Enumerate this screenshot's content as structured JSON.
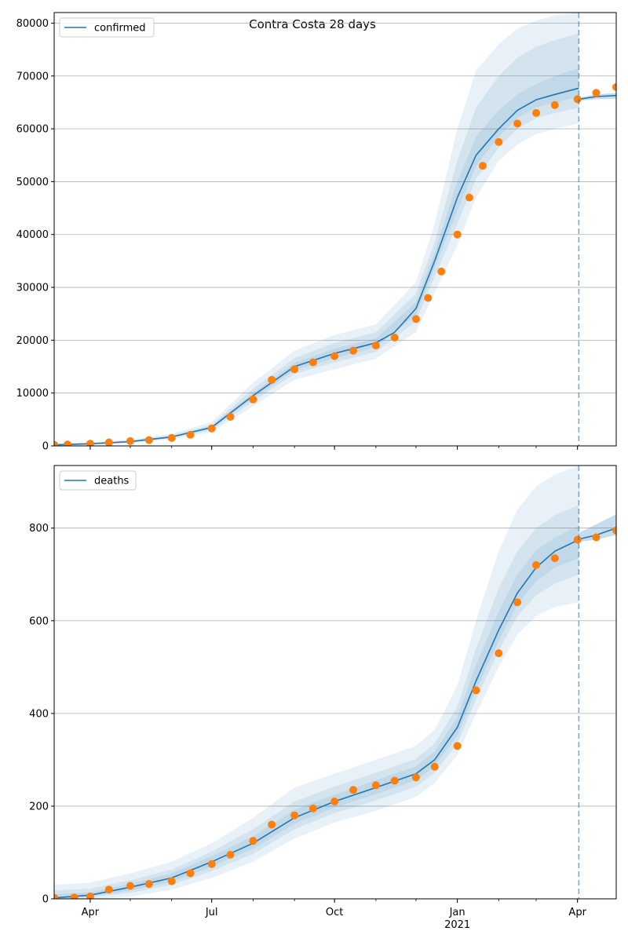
{
  "figure": {
    "title": "Contra Costa 28 days"
  },
  "colors": {
    "line": "#1f77b4",
    "observed": "#ff7f0e",
    "band": "#1f77b4",
    "grid": "#b0b0b0"
  },
  "x_axis": {
    "range": [
      "2020-03-05",
      "2021-04-30"
    ],
    "tick_labels": [
      {
        "date": "2020-04-01",
        "label": "Apr"
      },
      {
        "date": "2020-07-01",
        "label": "Jul"
      },
      {
        "date": "2020-10-01",
        "label": "Oct"
      },
      {
        "date": "2021-01-01",
        "label": "Jan",
        "sublabel": "2021"
      },
      {
        "date": "2021-04-01",
        "label": "Apr"
      }
    ],
    "forecast_start": "2021-04-02"
  },
  "chart_data": [
    {
      "type": "line",
      "legend": {
        "label": "confirmed",
        "position": "top-left"
      },
      "grid": "y",
      "ylim": [
        0,
        82000
      ],
      "yticks": [
        0,
        10000,
        20000,
        30000,
        40000,
        50000,
        60000,
        70000,
        80000
      ],
      "model": {
        "x": [
          "2020-03-05",
          "2020-04-01",
          "2020-05-01",
          "2020-06-01",
          "2020-07-01",
          "2020-08-01",
          "2020-09-01",
          "2020-10-01",
          "2020-11-01",
          "2020-11-15",
          "2020-12-01",
          "2020-12-15",
          "2021-01-01",
          "2021-01-15",
          "2021-02-01",
          "2021-02-15",
          "2021-03-01",
          "2021-03-15",
          "2021-04-02"
        ],
        "y": [
          200,
          400,
          800,
          1700,
          3500,
          9500,
          15000,
          17500,
          19500,
          21500,
          26000,
          35000,
          47000,
          55000,
          60000,
          63500,
          65500,
          66500,
          67700
        ]
      },
      "bands": [
        {
          "x": [
            "2020-03-05",
            "2020-04-01",
            "2020-05-01",
            "2020-06-01",
            "2020-07-01",
            "2020-08-01",
            "2020-09-01",
            "2020-10-01",
            "2020-11-01",
            "2020-12-01",
            "2020-12-15",
            "2021-01-01",
            "2021-01-15",
            "2021-02-01",
            "2021-02-15",
            "2021-03-01",
            "2021-03-15",
            "2021-04-02"
          ],
          "lo": [
            0,
            200,
            500,
            1200,
            2600,
            7500,
            12500,
            14500,
            16500,
            21500,
            29000,
            38000,
            47000,
            54000,
            57000,
            59000,
            60000,
            61000
          ],
          "hi": [
            400,
            700,
            1200,
            2300,
            4500,
            12000,
            18000,
            21000,
            23000,
            31000,
            42000,
            60000,
            71000,
            76000,
            79000,
            80500,
            81500,
            82000
          ]
        },
        {
          "x": [
            "2020-03-05",
            "2020-04-01",
            "2020-05-01",
            "2020-06-01",
            "2020-07-01",
            "2020-08-01",
            "2020-09-01",
            "2020-10-01",
            "2020-11-01",
            "2020-12-01",
            "2020-12-15",
            "2021-01-01",
            "2021-01-15",
            "2021-02-01",
            "2021-02-15",
            "2021-03-01",
            "2021-03-15",
            "2021-04-02"
          ],
          "lo": [
            100,
            300,
            650,
            1450,
            3000,
            8400,
            13600,
            15800,
            17800,
            23500,
            32000,
            42000,
            50500,
            56500,
            60000,
            62000,
            63000,
            64000
          ],
          "hi": [
            300,
            550,
            1000,
            2000,
            4000,
            10800,
            16600,
            19500,
            21500,
            28800,
            38500,
            54000,
            64000,
            70000,
            73500,
            75500,
            76800,
            78000
          ]
        },
        {
          "x": [
            "2020-03-05",
            "2020-04-01",
            "2020-05-01",
            "2020-06-01",
            "2020-07-01",
            "2020-08-01",
            "2020-09-01",
            "2020-10-01",
            "2020-11-01",
            "2020-12-01",
            "2020-12-15",
            "2021-01-01",
            "2021-01-15",
            "2021-02-01",
            "2021-02-15",
            "2021-03-01",
            "2021-03-15",
            "2021-04-02"
          ],
          "lo": [
            150,
            350,
            720,
            1580,
            3250,
            9000,
            14300,
            16600,
            18700,
            24800,
            33600,
            44500,
            53000,
            58500,
            62000,
            64000,
            65000,
            66000
          ],
          "hi": [
            250,
            450,
            880,
            1820,
            3750,
            10000,
            15700,
            18400,
            20300,
            27200,
            36500,
            50000,
            58500,
            63500,
            66500,
            68500,
            70000,
            71500
          ]
        }
      ],
      "tail": {
        "x": [
          "2021-04-02",
          "2021-04-15",
          "2021-04-30"
        ],
        "y": [
          65600,
          66100,
          66300
        ],
        "lo": [
          65300,
          65600,
          65700
        ],
        "hi": [
          65900,
          66500,
          66800
        ]
      },
      "observed": {
        "x": [
          "2020-03-05",
          "2020-03-15",
          "2020-04-01",
          "2020-04-15",
          "2020-05-01",
          "2020-05-15",
          "2020-06-01",
          "2020-06-15",
          "2020-07-01",
          "2020-07-15",
          "2020-08-01",
          "2020-08-15",
          "2020-09-01",
          "2020-09-15",
          "2020-10-01",
          "2020-10-15",
          "2020-11-01",
          "2020-11-15",
          "2020-12-01",
          "2020-12-10",
          "2020-12-20",
          "2021-01-01",
          "2021-01-10",
          "2021-01-20",
          "2021-02-01",
          "2021-02-15",
          "2021-03-01",
          "2021-03-15",
          "2021-04-01",
          "2021-04-15",
          "2021-04-30"
        ],
        "y": [
          200,
          250,
          400,
          650,
          900,
          1100,
          1500,
          2100,
          3300,
          5500,
          8800,
          12500,
          14500,
          15800,
          17000,
          18000,
          19000,
          20500,
          24000,
          28000,
          33000,
          40000,
          47000,
          53000,
          57500,
          61000,
          63000,
          64500,
          65600,
          66800,
          67900
        ]
      }
    },
    {
      "type": "line",
      "legend": {
        "label": "deaths",
        "position": "top-left"
      },
      "grid": "y",
      "ylim": [
        0,
        935
      ],
      "yticks": [
        0,
        200,
        400,
        600,
        800
      ],
      "model": {
        "x": [
          "2020-03-05",
          "2020-04-01",
          "2020-05-01",
          "2020-06-01",
          "2020-07-01",
          "2020-08-01",
          "2020-09-01",
          "2020-10-01",
          "2020-11-01",
          "2020-12-01",
          "2020-12-15",
          "2021-01-01",
          "2021-01-15",
          "2021-02-01",
          "2021-02-15",
          "2021-03-01",
          "2021-03-15",
          "2021-04-02"
        ],
        "y": [
          2,
          8,
          25,
          45,
          80,
          120,
          175,
          210,
          240,
          270,
          300,
          370,
          470,
          580,
          660,
          715,
          750,
          775
        ]
      },
      "bands": [
        {
          "x": [
            "2020-03-05",
            "2020-04-01",
            "2020-05-01",
            "2020-06-01",
            "2020-07-01",
            "2020-08-01",
            "2020-09-01",
            "2020-10-01",
            "2020-11-01",
            "2020-12-01",
            "2020-12-15",
            "2021-01-01",
            "2021-01-15",
            "2021-02-01",
            "2021-02-15",
            "2021-03-01",
            "2021-03-15",
            "2021-04-02"
          ],
          "lo": [
            0,
            0,
            5,
            20,
            45,
            80,
            130,
            165,
            190,
            220,
            250,
            310,
            400,
            500,
            570,
            610,
            630,
            640
          ],
          "hi": [
            30,
            35,
            55,
            80,
            120,
            175,
            240,
            270,
            300,
            330,
            365,
            460,
            600,
            750,
            840,
            890,
            915,
            935
          ]
        },
        {
          "x": [
            "2020-03-05",
            "2020-04-01",
            "2020-05-01",
            "2020-06-01",
            "2020-07-01",
            "2020-08-01",
            "2020-09-01",
            "2020-10-01",
            "2020-11-01",
            "2020-12-01",
            "2020-12-15",
            "2021-01-01",
            "2021-01-15",
            "2021-02-01",
            "2021-02-15",
            "2021-03-01",
            "2021-03-15",
            "2021-04-02"
          ],
          "lo": [
            0,
            3,
            13,
            30,
            60,
            97,
            150,
            185,
            212,
            242,
            272,
            335,
            430,
            535,
            610,
            655,
            680,
            700
          ],
          "hi": [
            18,
            22,
            40,
            63,
            102,
            150,
            210,
            242,
            272,
            302,
            335,
            415,
            540,
            670,
            750,
            800,
            828,
            850
          ]
        },
        {
          "x": [
            "2020-03-05",
            "2020-04-01",
            "2020-05-01",
            "2020-06-01",
            "2020-07-01",
            "2020-08-01",
            "2020-09-01",
            "2020-10-01",
            "2020-11-01",
            "2020-12-01",
            "2020-12-15",
            "2021-01-01",
            "2021-01-15",
            "2021-02-01",
            "2021-02-15",
            "2021-03-01",
            "2021-03-15",
            "2021-04-02"
          ],
          "lo": [
            0,
            5,
            18,
            37,
            70,
            108,
            162,
            197,
            226,
            256,
            286,
            352,
            450,
            557,
            635,
            685,
            715,
            735
          ],
          "hi": [
            10,
            14,
            32,
            55,
            92,
            135,
            192,
            225,
            256,
            286,
            318,
            392,
            505,
            620,
            700,
            752,
            780,
            805
          ]
        }
      ],
      "tail": {
        "x": [
          "2021-04-02",
          "2021-04-15",
          "2021-04-30"
        ],
        "y": [
          776,
          785,
          800
        ],
        "lo": [
          770,
          775,
          785
        ],
        "hi": [
          790,
          808,
          830
        ]
      },
      "observed": {
        "x": [
          "2020-03-05",
          "2020-03-20",
          "2020-04-01",
          "2020-04-15",
          "2020-05-01",
          "2020-05-15",
          "2020-06-01",
          "2020-06-15",
          "2020-07-01",
          "2020-07-15",
          "2020-08-01",
          "2020-08-15",
          "2020-09-01",
          "2020-09-15",
          "2020-10-01",
          "2020-10-15",
          "2020-11-01",
          "2020-11-15",
          "2020-12-01",
          "2020-12-15",
          "2021-01-01",
          "2021-01-15",
          "2021-02-01",
          "2021-02-15",
          "2021-03-01",
          "2021-03-15",
          "2021-04-01",
          "2021-04-15",
          "2021-04-30"
        ],
        "y": [
          2,
          3,
          5,
          20,
          28,
          32,
          38,
          55,
          75,
          95,
          125,
          160,
          180,
          195,
          210,
          235,
          245,
          255,
          262,
          285,
          330,
          450,
          530,
          640,
          720,
          735,
          775,
          780,
          795
        ]
      }
    }
  ]
}
